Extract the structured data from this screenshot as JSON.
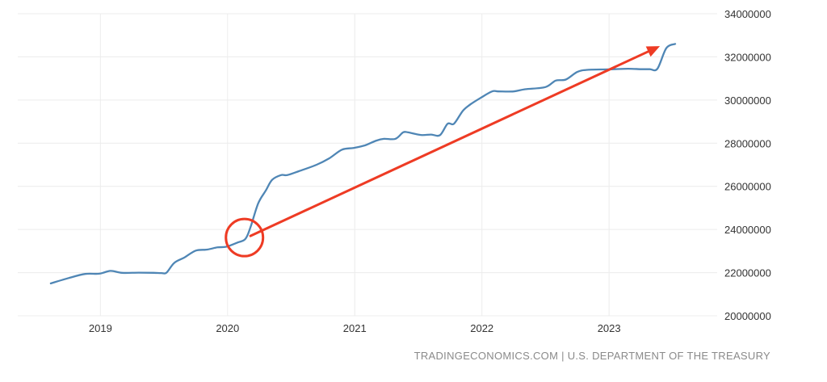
{
  "chart_data": {
    "type": "line",
    "title": "",
    "xlabel": "",
    "ylabel": "",
    "x_ticks": [
      "2019",
      "2020",
      "2021",
      "2022",
      "2023"
    ],
    "y_ticks": [
      "20000000",
      "22000000",
      "24000000",
      "26000000",
      "28000000",
      "30000000",
      "32000000",
      "34000000"
    ],
    "ylim": [
      20000000,
      34000000
    ],
    "xlim": [
      2018.35,
      2023.85
    ],
    "grid": true,
    "y_axis_position": "right",
    "series": [
      {
        "color": "#4f86b5",
        "x": [
          2018.61,
          2018.75,
          2018.88,
          2018.99,
          2019.08,
          2019.17,
          2019.3,
          2019.42,
          2019.48,
          2019.52,
          2019.58,
          2019.66,
          2019.75,
          2019.84,
          2019.92,
          2019.99,
          2020.08,
          2020.14,
          2020.18,
          2020.24,
          2020.3,
          2020.35,
          2020.42,
          2020.47,
          2020.56,
          2020.7,
          2020.8,
          2020.9,
          2020.99,
          2021.08,
          2021.17,
          2021.23,
          2021.32,
          2021.38,
          2021.42,
          2021.52,
          2021.6,
          2021.67,
          2021.73,
          2021.78,
          2021.85,
          2021.91,
          2021.99,
          2022.08,
          2022.13,
          2022.25,
          2022.34,
          2022.5,
          2022.58,
          2022.66,
          2022.75,
          2022.83,
          2022.99,
          2023.15,
          2023.25,
          2023.32,
          2023.38,
          2023.45,
          2023.52
        ],
        "y": [
          21500000,
          21750000,
          21940000,
          21950000,
          22080000,
          21990000,
          22000000,
          21990000,
          21980000,
          22000000,
          22450000,
          22700000,
          23020000,
          23070000,
          23170000,
          23200000,
          23400000,
          23560000,
          24100000,
          25200000,
          25800000,
          26300000,
          26520000,
          26520000,
          26700000,
          27000000,
          27300000,
          27700000,
          27780000,
          27900000,
          28120000,
          28200000,
          28200000,
          28500000,
          28500000,
          28380000,
          28400000,
          28370000,
          28900000,
          28900000,
          29500000,
          29800000,
          30100000,
          30400000,
          30400000,
          30400000,
          30500000,
          30600000,
          30900000,
          30950000,
          31300000,
          31400000,
          31420000,
          31450000,
          31430000,
          31430000,
          31450000,
          32400000,
          32600000
        ]
      }
    ],
    "annotations": [
      {
        "type": "circle",
        "x": 2020.12,
        "y": 23700000,
        "color": "#ee3b24"
      },
      {
        "type": "arrow",
        "from": [
          2020.18,
          23700000
        ],
        "to": [
          2023.4,
          32500000
        ],
        "color": "#ee3b24"
      }
    ]
  },
  "source_text": "TRADINGECONOMICS.COM | U.S. DEPARTMENT OF THE TREASURY"
}
